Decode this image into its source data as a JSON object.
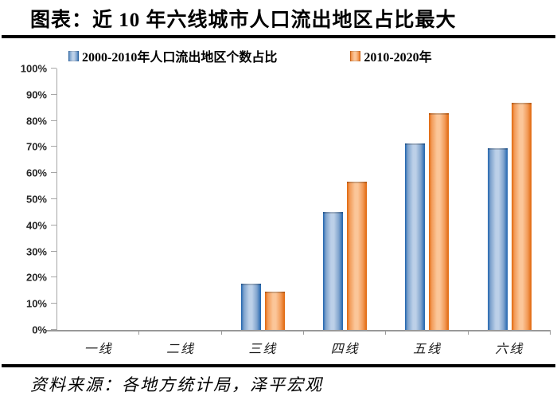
{
  "header": {
    "title": "图表：近 10 年六线城市人口流出地区占比最大"
  },
  "footer": {
    "source": "资料来源：各地方统计局，泽平宏观"
  },
  "chart_data": {
    "type": "bar",
    "title": "图表：近 10 年六线城市人口流出地区占比最大",
    "categories": [
      "一线",
      "二线",
      "三线",
      "四线",
      "五线",
      "六线"
    ],
    "series": [
      {
        "name": "2000-2010年人口流出地区个数占比",
        "color": "#4F81BD",
        "color_dark": "#1E63AE",
        "color_mid": "#7FA3CD",
        "color_light": "#BCD0E8",
        "values": [
          0,
          0,
          17.6,
          45.0,
          71.4,
          69.6
        ]
      },
      {
        "name": "2010-2020年",
        "color": "#F79646",
        "color_dark": "#E0660B",
        "color_mid": "#F29B59",
        "color_light": "#FBC699",
        "values": [
          0,
          0,
          14.6,
          56.6,
          82.8,
          86.8
        ]
      }
    ],
    "xlabel": "",
    "ylabel": "",
    "ylim": [
      0,
      100
    ],
    "yticks": [
      0,
      10,
      20,
      30,
      40,
      50,
      60,
      70,
      80,
      90,
      100
    ],
    "ytick_labels": [
      "0%",
      "10%",
      "20%",
      "30%",
      "40%",
      "50%",
      "60%",
      "70%",
      "80%",
      "90%",
      "100%"
    ],
    "grid": false,
    "legend_position": "top",
    "axis_color": "#A6A6A6",
    "xaxis_color": "#999999",
    "tick_label_color": "#262626"
  }
}
